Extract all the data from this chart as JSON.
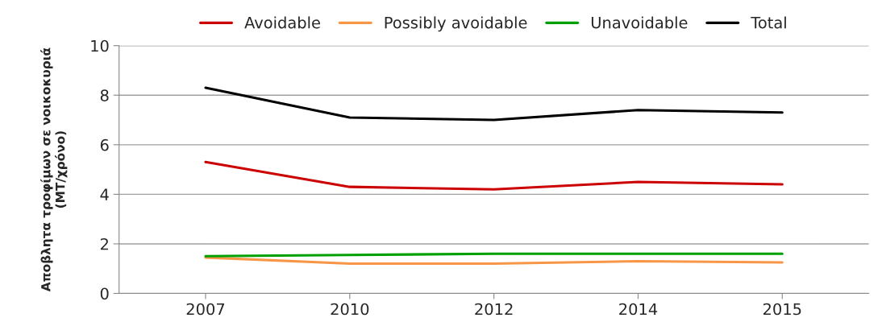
{
  "chart_data": {
    "type": "line",
    "ylabel": "Αποβλητα τροφίμων σε νοικοκυριά\n(MT/χρόνο)",
    "categories": [
      "2007",
      "2010",
      "2012",
      "2014",
      "2015"
    ],
    "series": [
      {
        "name": "Avoidable",
        "color": "#cc0000",
        "values": [
          5.3,
          4.3,
          4.2,
          4.5,
          4.4
        ]
      },
      {
        "name": "Possibly avoidable",
        "color": "#f79646",
        "values": [
          1.45,
          1.2,
          1.2,
          1.3,
          1.25
        ]
      },
      {
        "name": "Unavoidable",
        "color": "#00a000",
        "values": [
          1.5,
          1.55,
          1.6,
          1.6,
          1.6
        ]
      },
      {
        "name": "Total",
        "color": "#000000",
        "values": [
          8.3,
          7.1,
          7.0,
          7.4,
          7.3
        ]
      }
    ],
    "ylim": [
      0,
      10
    ],
    "yticks": [
      0,
      2,
      4,
      6,
      8,
      10
    ],
    "grid": "y",
    "legend": "top",
    "marker": "none",
    "line_style": "solid"
  }
}
